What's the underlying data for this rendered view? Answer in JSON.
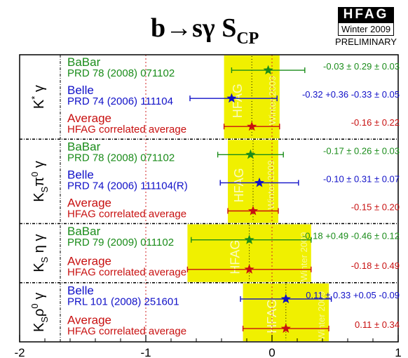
{
  "chart_data": {
    "type": "forest",
    "title": "b→sγ S",
    "title_subscript": "CP",
    "logo": {
      "name": "HFAG",
      "line2": "Winter 2009",
      "line3": "PRELIMINARY"
    },
    "watermark": "HFAG",
    "watermark2": "Winter 2009",
    "xlim": [
      -2,
      1
    ],
    "x_ticks": [
      "-2",
      "-1",
      "0",
      "1"
    ],
    "x_tick_values": [
      -2,
      -1,
      0,
      1
    ],
    "colors": {
      "babar": "#1a8c1a",
      "belle": "#1010c8",
      "average": "#c81010",
      "band": "#f0f000"
    },
    "groups": [
      {
        "label_main": "K",
        "label_sup": "*",
        "label_rest": " γ",
        "average": -0.16,
        "error": 0.22,
        "entries": [
          {
            "experiment": "BaBar",
            "reference": "PRD 78 (2008) 071102",
            "kind": "babar",
            "value": -0.03,
            "err_lo": 0.29,
            "err_hi": 0.29,
            "result_text": "-0.03 ± 0.29 ± 0.03"
          },
          {
            "experiment": "Belle",
            "reference": "PRD 74 (2006) 111104",
            "kind": "belle",
            "value": -0.32,
            "err_lo": 0.33,
            "err_hi": 0.36,
            "result_text": "-0.32 +0.36 -0.33 ± 0.05"
          },
          {
            "experiment": "Average",
            "reference": "HFAG correlated average",
            "kind": "average",
            "value": -0.16,
            "err_lo": 0.22,
            "err_hi": 0.22,
            "result_text": "-0.16 ± 0.22"
          }
        ]
      },
      {
        "label_main": "K",
        "label_sub": "S",
        "label_greek": "π",
        "label_sup": "0",
        "label_rest": " γ",
        "average": -0.15,
        "error": 0.2,
        "entries": [
          {
            "experiment": "BaBar",
            "reference": "PRD 78 (2008) 071102",
            "kind": "babar",
            "value": -0.17,
            "err_lo": 0.26,
            "err_hi": 0.26,
            "result_text": "-0.17 ± 0.26 ± 0.03"
          },
          {
            "experiment": "Belle",
            "reference": "PRD 74 (2006) 111104(R)",
            "kind": "belle",
            "value": -0.1,
            "err_lo": 0.31,
            "err_hi": 0.31,
            "result_text": "-0.10 ± 0.31 ± 0.07"
          },
          {
            "experiment": "Average",
            "reference": "HFAG correlated average",
            "kind": "average",
            "value": -0.15,
            "err_lo": 0.2,
            "err_hi": 0.2,
            "result_text": "-0.15 ± 0.20"
          }
        ]
      },
      {
        "label_main": "K",
        "label_sub": "S",
        "label_greek": " η γ",
        "average": -0.18,
        "error": 0.49,
        "entries": [
          {
            "experiment": "BaBar",
            "reference": "PRD 79 (2009) 011102",
            "kind": "babar",
            "value": -0.18,
            "err_lo": 0.46,
            "err_hi": 0.49,
            "result_text": "-0.18 +0.49 -0.46 ± 0.12"
          },
          {
            "experiment": "Average",
            "reference": "HFAG correlated average",
            "kind": "average",
            "value": -0.18,
            "err_lo": 0.49,
            "err_hi": 0.49,
            "result_text": "-0.18 ± 0.49"
          }
        ]
      },
      {
        "label_main": "K",
        "label_sub": "S",
        "label_greek": "ρ",
        "label_sup": "0",
        "label_rest": " γ",
        "average": 0.11,
        "error": 0.34,
        "entries": [
          {
            "experiment": "Belle",
            "reference": "PRL 101 (2008) 251601",
            "kind": "belle",
            "value": 0.11,
            "err_lo": 0.36,
            "err_hi": 0.36,
            "result_text": "0.11 ± 0.33 +0.05 -0.09"
          },
          {
            "experiment": "Average",
            "reference": "HFAG correlated average",
            "kind": "average",
            "value": 0.11,
            "err_lo": 0.34,
            "err_hi": 0.34,
            "result_text": "0.11 ± 0.34"
          }
        ]
      }
    ]
  }
}
